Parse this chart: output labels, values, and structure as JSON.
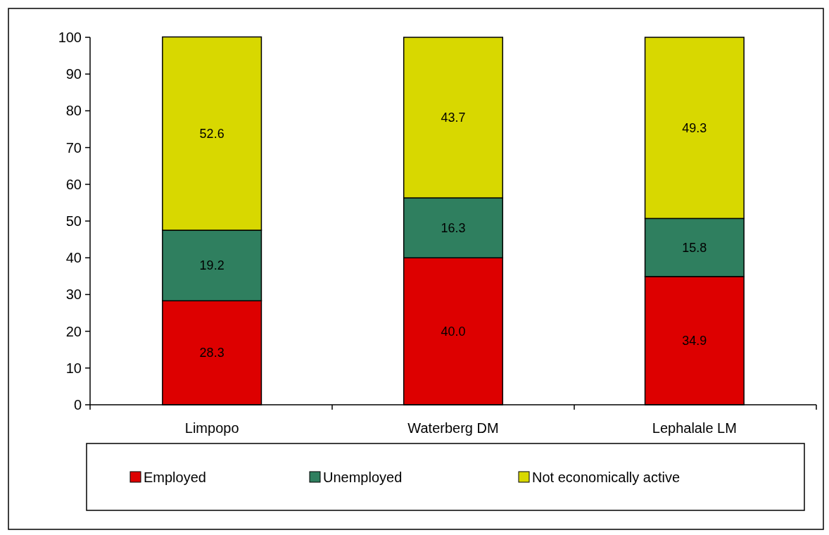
{
  "chart_data": {
    "type": "bar",
    "stacked": true,
    "categories": [
      "Limpopo",
      "Waterberg DM",
      "Lephalale LM"
    ],
    "series": [
      {
        "name": "Employed",
        "color": "#dd0000",
        "values": [
          28.3,
          40.0,
          34.9
        ],
        "value_labels": [
          "28.3",
          "40.0",
          "34.9"
        ]
      },
      {
        "name": "Unemployed",
        "color": "#2f7f5f",
        "values": [
          19.2,
          16.3,
          15.8
        ],
        "value_labels": [
          "19.2",
          "16.3",
          "15.8"
        ]
      },
      {
        "name": "Not economically active",
        "color": "#d8d800",
        "values": [
          52.6,
          43.7,
          49.3
        ],
        "value_labels": [
          "52.6",
          "43.7",
          "49.3"
        ]
      }
    ],
    "ylim": [
      0,
      100
    ],
    "yticks": [
      0,
      10,
      20,
      30,
      40,
      50,
      60,
      70,
      80,
      90,
      100
    ],
    "grid": false,
    "legend": "bottom"
  }
}
